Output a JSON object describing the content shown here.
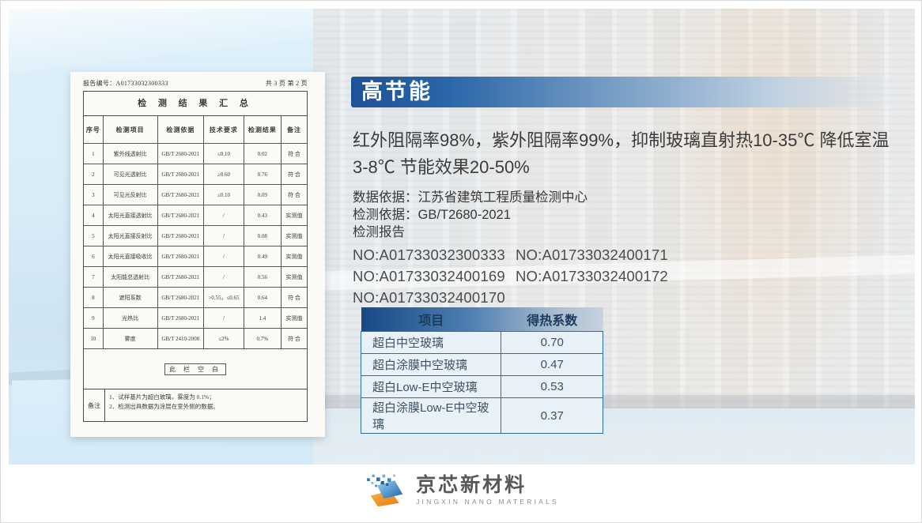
{
  "header": {
    "title": "高节能"
  },
  "intro": {
    "text": "红外阻隔率98%，紫外阻隔率99%，抑制玻璃直射热10-35℃ 降低室温3-8℃ 节能效果20-50%"
  },
  "source": {
    "data_basis_label": "数据依据：",
    "data_basis_value": "江苏省建筑工程质量检测中心",
    "test_basis_label": "检测依据：",
    "test_basis_value": "GB/T2680-2021",
    "report_label": "检测报告",
    "report_numbers": [
      "NO:A01733032300333",
      "NO:A01733032400171",
      "NO:A01733032400169",
      "NO:A01733032400172",
      "NO:A01733032400170"
    ]
  },
  "heat_table": {
    "headers": [
      "项目",
      "得热系数"
    ],
    "rows": [
      [
        "超白中空玻璃",
        "0.70"
      ],
      [
        "超白涂膜中空玻璃",
        "0.47"
      ],
      [
        "超白Low-E中空玻璃",
        "0.53"
      ],
      [
        "超白涂膜Low-E中空玻璃",
        "0.37"
      ]
    ]
  },
  "report_doc": {
    "header_left": "报告编号：A01733032300333",
    "header_right": "共 3 页 第 2 页",
    "title": "检 测 结 果 汇 总",
    "columns": [
      "序号",
      "检测项目",
      "检测依据",
      "技术要求",
      "检测结果",
      "备注"
    ],
    "rows": [
      [
        "1",
        "紫外线透射比",
        "GB/T 2680-2021",
        "≤0.10",
        "0.02",
        "符 合"
      ],
      [
        "2",
        "可见光透射比",
        "GB/T 2680-2021",
        "≥0.60",
        "0.76",
        "符 合"
      ],
      [
        "3",
        "可见光反射比",
        "GB/T 2680-2021",
        "≤0.10",
        "0.09",
        "符 合"
      ],
      [
        "4",
        "太阳光直接透射比",
        "GB/T 2680-2021",
        "/",
        "0.43",
        "实测值"
      ],
      [
        "5",
        "太阳光直接反射比",
        "GB/T 2680-2021",
        "/",
        "0.08",
        "实测值"
      ],
      [
        "6",
        "太阳光直接吸收比",
        "GB/T 2680-2021",
        "/",
        "0.49",
        "实测值"
      ],
      [
        "7",
        "太阳能总透射比",
        "GB/T 2680-2021",
        "/",
        "0.56",
        "实测值"
      ],
      [
        "8",
        "遮阳系数",
        "GB/T 2680-2021",
        ">0.55，≤0.65",
        "0.64",
        "符 合"
      ],
      [
        "9",
        "光热比",
        "GB/T 2680-2021",
        "/",
        "1.4",
        "实测值"
      ],
      [
        "10",
        "雾度",
        "GB/T 2410-2008",
        "≤2%",
        "0.7%",
        "符 合"
      ]
    ],
    "blank_note": "此 栏 空 白",
    "remark_label": "备注",
    "remarks": [
      "1、试样基片为超白玻璃，雾度为 0.1%；",
      "2、检测出具数据为涂层在室外侧的数据。"
    ]
  },
  "logo": {
    "name": "京芯新材料",
    "subtitle": "JINGXIN NANO MATERIALS"
  },
  "colors": {
    "banner_blue": "#1e5296",
    "table_header_dark": "#164a85",
    "table_header_light": "#c6d2de",
    "table_row_bg": "#e9f1f8",
    "table_border": "#2e6da4",
    "text_dark": "#3b3b3b",
    "logo_orange": "#f0931f",
    "logo_blue": "#1e6cb5"
  }
}
